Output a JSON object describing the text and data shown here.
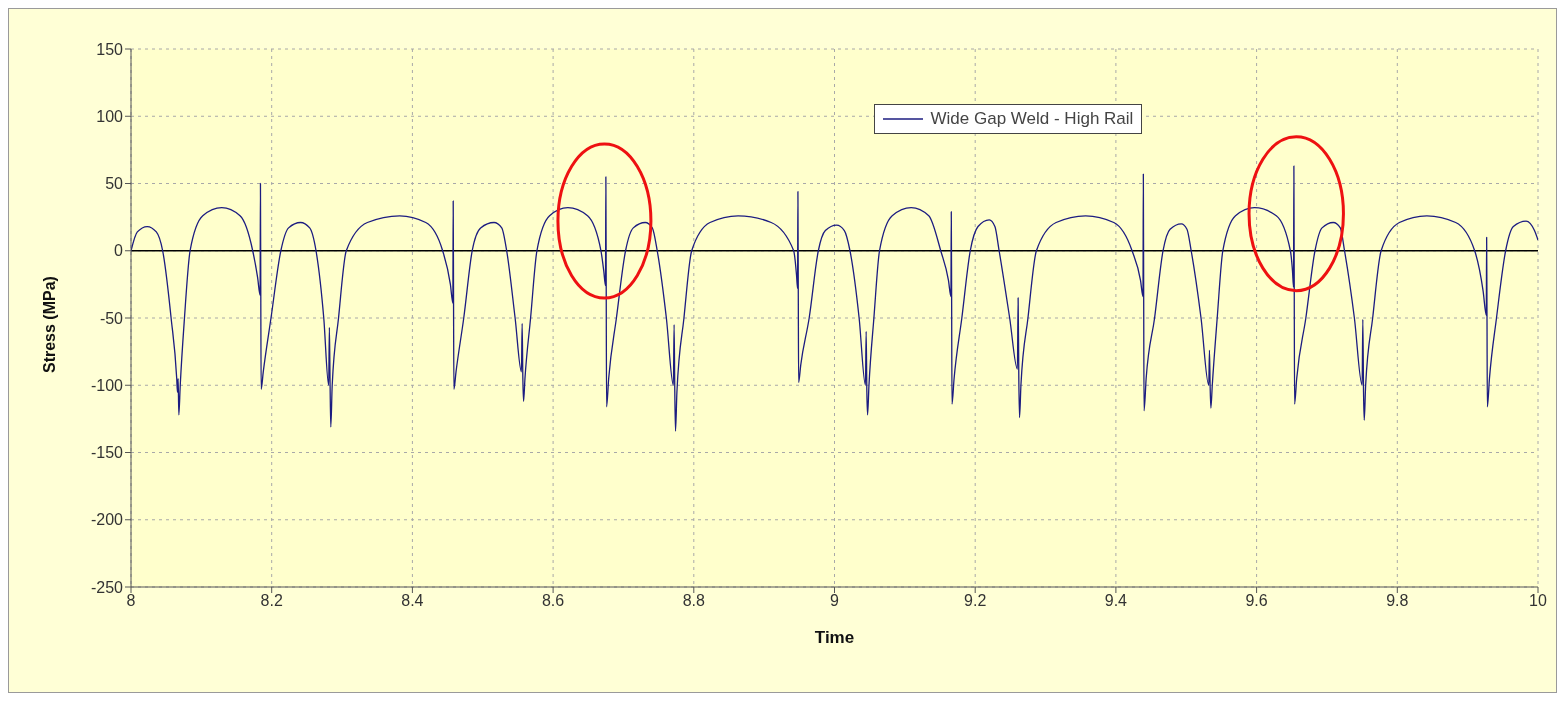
{
  "chart_data": {
    "type": "line",
    "xlabel": "Time",
    "ylabel": "Stress (MPa)",
    "xlim": [
      8,
      10
    ],
    "xticks": [
      8,
      8.2,
      8.4,
      8.6,
      8.8,
      9,
      9.2,
      9.4,
      9.6,
      9.8,
      10
    ],
    "ylim": [
      -250,
      150
    ],
    "yticks": [
      -250,
      -200,
      -150,
      -100,
      -50,
      0,
      50,
      100,
      150
    ],
    "grid": true,
    "legend": "top right",
    "marker": "none",
    "line_style": "solid",
    "ref_lines": [
      {
        "axis": "y",
        "value": 0,
        "color": "#000000"
      }
    ],
    "series": [
      {
        "name": "Wide Gap Weld - High Rail",
        "color": "#1c1c80",
        "x": [
          8,
          8.009,
          8.023,
          8.036,
          8.045,
          8.057,
          8.065,
          8.066,
          8.067,
          8.068,
          8.07,
          8.076,
          8.084,
          8.102,
          8.129,
          8.155,
          8.173,
          8.18,
          8.1835,
          8.184,
          8.1845,
          8.185,
          8.188,
          8.199,
          8.213,
          8.224,
          8.241,
          8.254,
          8.263,
          8.274,
          8.281,
          8.282,
          8.283,
          8.284,
          8.286,
          8.295,
          8.306,
          8.336,
          8.382,
          8.419,
          8.443,
          8.454,
          8.4575,
          8.458,
          8.4585,
          8.459,
          8.462,
          8.473,
          8.485,
          8.497,
          8.516,
          8.527,
          8.534,
          8.546,
          8.555,
          8.556,
          8.557,
          8.558,
          8.56,
          8.568,
          8.577,
          8.595,
          8.621,
          8.649,
          8.668,
          8.672,
          8.6745,
          8.675,
          8.6755,
          8.676,
          8.679,
          8.69,
          8.703,
          8.714,
          8.731,
          8.741,
          8.748,
          8.761,
          8.771,
          8.772,
          8.773,
          8.774,
          8.776,
          8.786,
          8.797,
          8.823,
          8.863,
          8.91,
          8.942,
          8.946,
          8.9475,
          8.948,
          8.9485,
          8.949,
          8.952,
          8.964,
          8.977,
          8.987,
          9.003,
          9.014,
          9.022,
          9.035,
          9.044,
          9.045,
          9.046,
          9.047,
          9.049,
          9.056,
          9.064,
          9.082,
          9.109,
          9.134,
          9.151,
          9.162,
          9.1655,
          9.166,
          9.1665,
          9.167,
          9.17,
          9.181,
          9.193,
          9.204,
          9.22,
          9.228,
          9.234,
          9.249,
          9.26,
          9.261,
          9.262,
          9.263,
          9.265,
          9.275,
          9.287,
          9.315,
          9.357,
          9.397,
          9.423,
          9.435,
          9.4385,
          9.439,
          9.4395,
          9.44,
          9.443,
          9.455,
          9.467,
          9.477,
          9.493,
          9.501,
          9.507,
          9.521,
          9.532,
          9.533,
          9.534,
          9.535,
          9.537,
          9.544,
          9.552,
          9.57,
          9.597,
          9.628,
          9.648,
          9.651,
          9.6525,
          9.653,
          9.6535,
          9.654,
          9.657,
          9.67,
          9.683,
          9.693,
          9.709,
          9.719,
          9.725,
          9.739,
          9.75,
          9.751,
          9.752,
          9.753,
          9.755,
          9.765,
          9.777,
          9.803,
          9.842,
          9.883,
          9.91,
          9.922,
          9.9265,
          9.927,
          9.9275,
          9.928,
          9.931,
          9.941,
          9.954,
          9.965,
          9.983,
          9.995,
          10
        ],
        "values": [
          0,
          14,
          18,
          14,
          0,
          -50,
          -95,
          -105,
          -95,
          -122,
          -100,
          -50,
          0,
          26,
          32,
          26,
          0,
          -20,
          -33,
          50,
          -33,
          -103,
          -90,
          -50,
          0,
          17,
          21,
          17,
          0,
          -50,
          -100,
          -57,
          -100,
          -131,
          -100,
          -50,
          0,
          21,
          26,
          21,
          0,
          -25,
          -39,
          37,
          -39,
          -103,
          -90,
          -50,
          0,
          17,
          21,
          17,
          0,
          -50,
          -90,
          -54,
          -95,
          -112,
          -95,
          -50,
          0,
          26,
          32,
          26,
          0,
          -15,
          -26,
          55,
          -26,
          -116,
          -95,
          -50,
          0,
          17,
          21,
          17,
          0,
          -50,
          -100,
          -55,
          -105,
          -134,
          -105,
          -50,
          0,
          21,
          26,
          21,
          0,
          -18,
          -28,
          44,
          -28,
          -98,
          -85,
          -50,
          0,
          15,
          19,
          15,
          0,
          -50,
          -100,
          -60,
          -105,
          -122,
          -100,
          -50,
          0,
          26,
          32,
          26,
          0,
          -22,
          -34,
          29,
          -34,
          -114,
          -95,
          -50,
          0,
          18,
          23,
          18,
          0,
          -50,
          -88,
          -35,
          -95,
          -124,
          -100,
          -50,
          0,
          21,
          26,
          21,
          0,
          -22,
          -34,
          57,
          -34,
          -119,
          -95,
          -50,
          0,
          16,
          20,
          16,
          0,
          -50,
          -100,
          -74,
          -102,
          -117,
          -100,
          -50,
          0,
          26,
          32,
          26,
          0,
          -15,
          -27,
          63,
          -27,
          -114,
          -95,
          -50,
          0,
          17,
          21,
          17,
          0,
          -50,
          -100,
          -51,
          -105,
          -126,
          -100,
          -50,
          0,
          21,
          26,
          21,
          0,
          -30,
          -48,
          10,
          -48,
          -116,
          -95,
          -50,
          0,
          18,
          22,
          15,
          8
        ]
      }
    ]
  }
}
